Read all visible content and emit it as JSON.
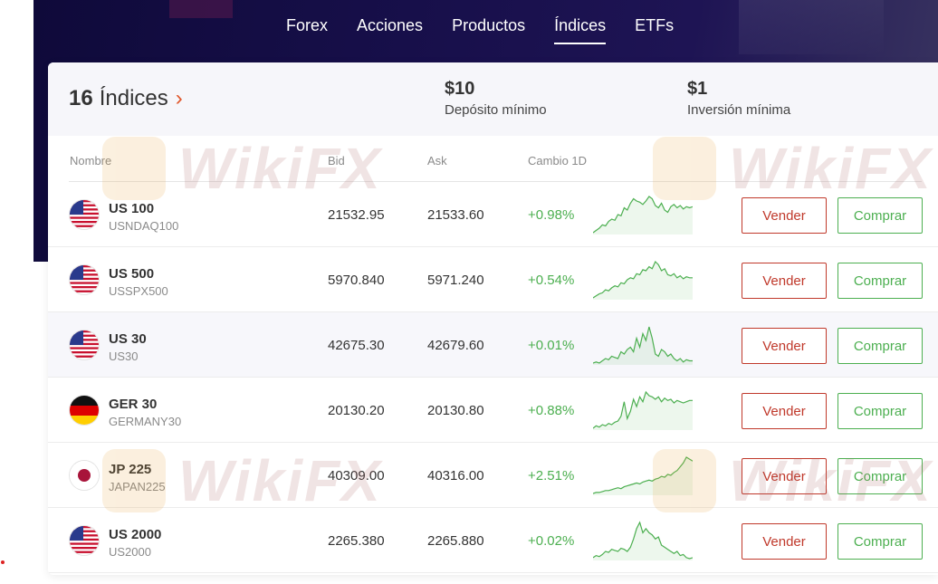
{
  "nav": {
    "items": [
      {
        "label": "Forex",
        "active": false
      },
      {
        "label": "Acciones",
        "active": false
      },
      {
        "label": "Productos",
        "active": false
      },
      {
        "label": "Índices",
        "active": true
      },
      {
        "label": "ETFs",
        "active": false
      }
    ]
  },
  "summary": {
    "count": "16",
    "title": "Índices",
    "chevron": "›",
    "deposit": {
      "value": "$10",
      "label": "Depósito mínimo"
    },
    "investment": {
      "value": "$1",
      "label": "Inversión mínima"
    }
  },
  "table": {
    "headers": {
      "name": "Nombre",
      "bid": "Bid",
      "ask": "Ask",
      "change": "Cambio 1D"
    },
    "sell_label": "Vender",
    "buy_label": "Comprar",
    "rows": [
      {
        "name": "US 100",
        "symbol": "USNDAQ100",
        "bid": "21532.95",
        "ask": "21533.60",
        "change": "+0.98%",
        "flag": "us-flag-icon",
        "spark": [
          8,
          10,
          12,
          15,
          14,
          18,
          20,
          19,
          24,
          23,
          30,
          28,
          34,
          38,
          36,
          35,
          33,
          36,
          40,
          38,
          32,
          30,
          34,
          28,
          26,
          31,
          33,
          30,
          32,
          29,
          31,
          30,
          31
        ]
      },
      {
        "name": "US 500",
        "symbol": "USSPX500",
        "bid": "5970.840",
        "ask": "5971.240",
        "change": "+0.54%",
        "flag": "us-flag-icon",
        "spark": [
          4,
          6,
          8,
          9,
          12,
          11,
          14,
          16,
          15,
          19,
          18,
          22,
          24,
          23,
          28,
          27,
          32,
          31,
          35,
          33,
          40,
          37,
          31,
          33,
          27,
          26,
          28,
          24,
          26,
          23,
          25,
          24,
          24
        ]
      },
      {
        "name": "US 30",
        "symbol": "US30",
        "bid": "42675.30",
        "ask": "42679.60",
        "change": "+0.01%",
        "flag": "us-flag-icon",
        "spark": [
          8,
          9,
          8,
          10,
          12,
          11,
          14,
          13,
          12,
          18,
          16,
          20,
          22,
          18,
          30,
          22,
          34,
          28,
          40,
          30,
          16,
          14,
          20,
          18,
          14,
          16,
          12,
          10,
          12,
          9,
          11,
          10,
          10
        ]
      },
      {
        "name": "GER 30",
        "symbol": "GERMANY30",
        "bid": "20130.20",
        "ask": "20130.80",
        "change": "+0.88%",
        "flag": "de-flag-icon",
        "spark": [
          4,
          6,
          5,
          7,
          6,
          8,
          7,
          9,
          10,
          14,
          26,
          12,
          18,
          28,
          22,
          30,
          26,
          34,
          31,
          30,
          28,
          30,
          26,
          29,
          27,
          28,
          25,
          27,
          26,
          25,
          26,
          27,
          27
        ]
      },
      {
        "name": "JP 225",
        "symbol": "JAPAN225",
        "bid": "40309.00",
        "ask": "40316.00",
        "change": "+2.51%",
        "flag": "jp-flag-icon",
        "spark": [
          2,
          3,
          3,
          4,
          5,
          5,
          6,
          7,
          8,
          7,
          9,
          10,
          11,
          12,
          13,
          12,
          14,
          15,
          16,
          15,
          17,
          18,
          20,
          19,
          22,
          21,
          24,
          26,
          30,
          34,
          40,
          38,
          36
        ]
      },
      {
        "name": "US 2000",
        "symbol": "US2000",
        "bid": "2265.380",
        "ask": "2265.880",
        "change": "+0.02%",
        "flag": "us-flag-icon",
        "spark": [
          6,
          8,
          7,
          9,
          12,
          11,
          14,
          13,
          12,
          15,
          14,
          12,
          16,
          24,
          34,
          40,
          30,
          34,
          30,
          28,
          24,
          26,
          18,
          16,
          14,
          12,
          10,
          12,
          8,
          9,
          6,
          5,
          6
        ]
      }
    ]
  },
  "watermark": {
    "text": "WikiFX"
  },
  "colors": {
    "positive": "#4caf50",
    "sell": "#c0392b",
    "accent": "#e0562a",
    "hero": "#170f4a"
  }
}
